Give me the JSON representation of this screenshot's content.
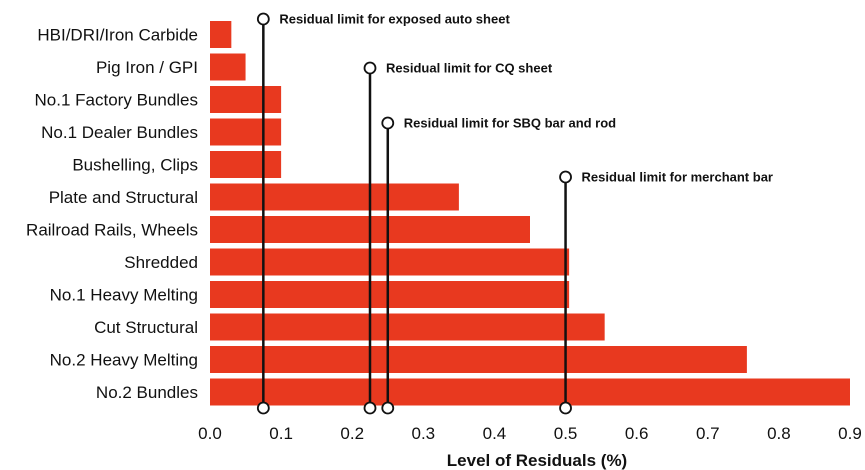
{
  "chart_data": {
    "type": "bar",
    "orientation": "horizontal",
    "categories": [
      "HBI/DRI/Iron Carbide",
      "Pig Iron / GPI",
      "No.1 Factory Bundles",
      "No.1 Dealer Bundles",
      "Bushelling, Clips",
      "Plate and Structural",
      "Railroad Rails, Wheels",
      "Shredded",
      "No.1 Heavy Melting",
      "Cut Structural",
      "No.2 Heavy Melting",
      "No.2 Bundles"
    ],
    "values": [
      0.03,
      0.05,
      0.1,
      0.1,
      0.1,
      0.35,
      0.45,
      0.505,
      0.505,
      0.555,
      0.755,
      0.9
    ],
    "xlabel": "Level of Residuals (%)",
    "xlim": [
      0,
      0.9
    ],
    "xticks": [
      "0.0",
      "0.1",
      "0.2",
      "0.3",
      "0.4",
      "0.5",
      "0.6",
      "0.7",
      "0.8",
      "0.9"
    ],
    "grid": false,
    "bar_color": "#e8391f",
    "annotations": [
      {
        "label": "Residual limit for exposed auto sheet",
        "x": 0.075
      },
      {
        "label": "Residual limit for CQ sheet",
        "x": 0.225
      },
      {
        "label": "Residual limit for SBQ bar and rod",
        "x": 0.25
      },
      {
        "label": "Residual limit for merchant bar",
        "x": 0.5
      }
    ]
  }
}
